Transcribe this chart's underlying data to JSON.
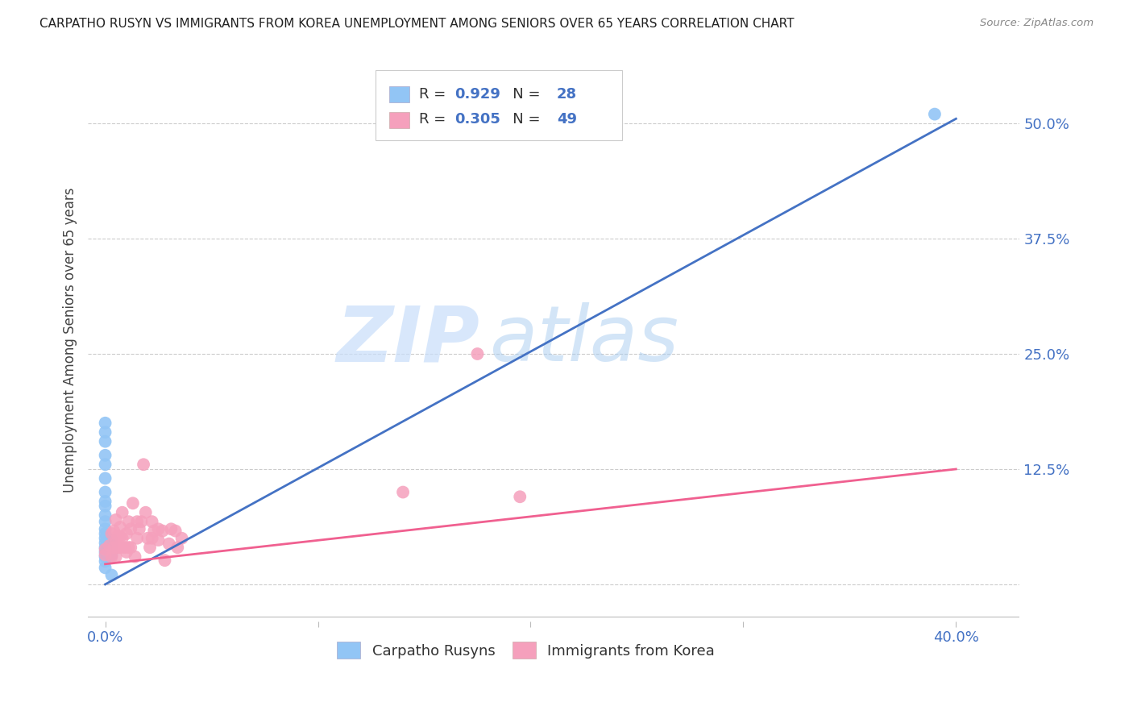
{
  "title": "CARPATHO RUSYN VS IMMIGRANTS FROM KOREA UNEMPLOYMENT AMONG SENIORS OVER 65 YEARS CORRELATION CHART",
  "source": "Source: ZipAtlas.com",
  "ylabel": "Unemployment Among Seniors over 65 years",
  "legend_label1": "Carpatho Rusyns",
  "legend_label2": "Immigrants from Korea",
  "R1": "0.929",
  "N1": "28",
  "R2": "0.305",
  "N2": "49",
  "blue_color": "#92C5F5",
  "pink_color": "#F5A0BC",
  "blue_line_color": "#4472C4",
  "pink_line_color": "#F06090",
  "axis_label_color": "#4472C4",
  "watermark_zip": "ZIP",
  "watermark_atlas": "atlas",
  "blue_trend_x": [
    0.0,
    0.4
  ],
  "blue_trend_y": [
    0.0,
    0.505
  ],
  "pink_trend_x": [
    0.0,
    0.4
  ],
  "pink_trend_y": [
    0.022,
    0.125
  ],
  "blue_scatter_x": [
    0.0,
    0.0,
    0.0,
    0.0,
    0.0,
    0.0,
    0.0,
    0.0,
    0.0,
    0.0,
    0.0,
    0.0,
    0.0,
    0.0,
    0.0,
    0.0,
    0.0,
    0.0,
    0.0,
    0.0,
    0.002,
    0.002,
    0.003,
    0.003,
    0.003,
    0.003,
    0.003,
    0.39
  ],
  "blue_scatter_y": [
    0.175,
    0.165,
    0.155,
    0.14,
    0.13,
    0.115,
    0.1,
    0.09,
    0.085,
    0.075,
    0.068,
    0.06,
    0.055,
    0.05,
    0.045,
    0.04,
    0.035,
    0.03,
    0.025,
    0.018,
    0.04,
    0.035,
    0.048,
    0.042,
    0.038,
    0.032,
    0.01,
    0.51
  ],
  "pink_scatter_x": [
    0.0,
    0.0,
    0.002,
    0.003,
    0.003,
    0.004,
    0.004,
    0.005,
    0.005,
    0.005,
    0.006,
    0.006,
    0.007,
    0.007,
    0.007,
    0.008,
    0.008,
    0.009,
    0.01,
    0.01,
    0.011,
    0.011,
    0.012,
    0.012,
    0.013,
    0.014,
    0.015,
    0.015,
    0.016,
    0.017,
    0.018,
    0.019,
    0.02,
    0.021,
    0.022,
    0.022,
    0.023,
    0.025,
    0.025,
    0.027,
    0.028,
    0.03,
    0.031,
    0.033,
    0.034,
    0.036,
    0.14,
    0.175,
    0.195
  ],
  "pink_scatter_y": [
    0.038,
    0.032,
    0.042,
    0.03,
    0.055,
    0.04,
    0.058,
    0.03,
    0.048,
    0.07,
    0.04,
    0.052,
    0.04,
    0.052,
    0.062,
    0.05,
    0.078,
    0.04,
    0.035,
    0.055,
    0.04,
    0.068,
    0.04,
    0.06,
    0.088,
    0.03,
    0.068,
    0.05,
    0.06,
    0.068,
    0.13,
    0.078,
    0.05,
    0.04,
    0.05,
    0.068,
    0.058,
    0.048,
    0.06,
    0.058,
    0.026,
    0.044,
    0.06,
    0.058,
    0.04,
    0.05,
    0.1,
    0.25,
    0.095
  ],
  "xlim": [
    -0.008,
    0.43
  ],
  "ylim": [
    -0.04,
    0.57
  ],
  "yticks": [
    0.0,
    0.125,
    0.25,
    0.375,
    0.5
  ],
  "ytick_labels": [
    "",
    "12.5%",
    "25.0%",
    "37.5%",
    "50.0%"
  ],
  "xticks": [
    0.0,
    0.1,
    0.2,
    0.3,
    0.4
  ],
  "xtick_labels": [
    "0.0%",
    "",
    "",
    "",
    "40.0%"
  ],
  "background_color": "#FFFFFF",
  "grid_color": "#CCCCCC"
}
